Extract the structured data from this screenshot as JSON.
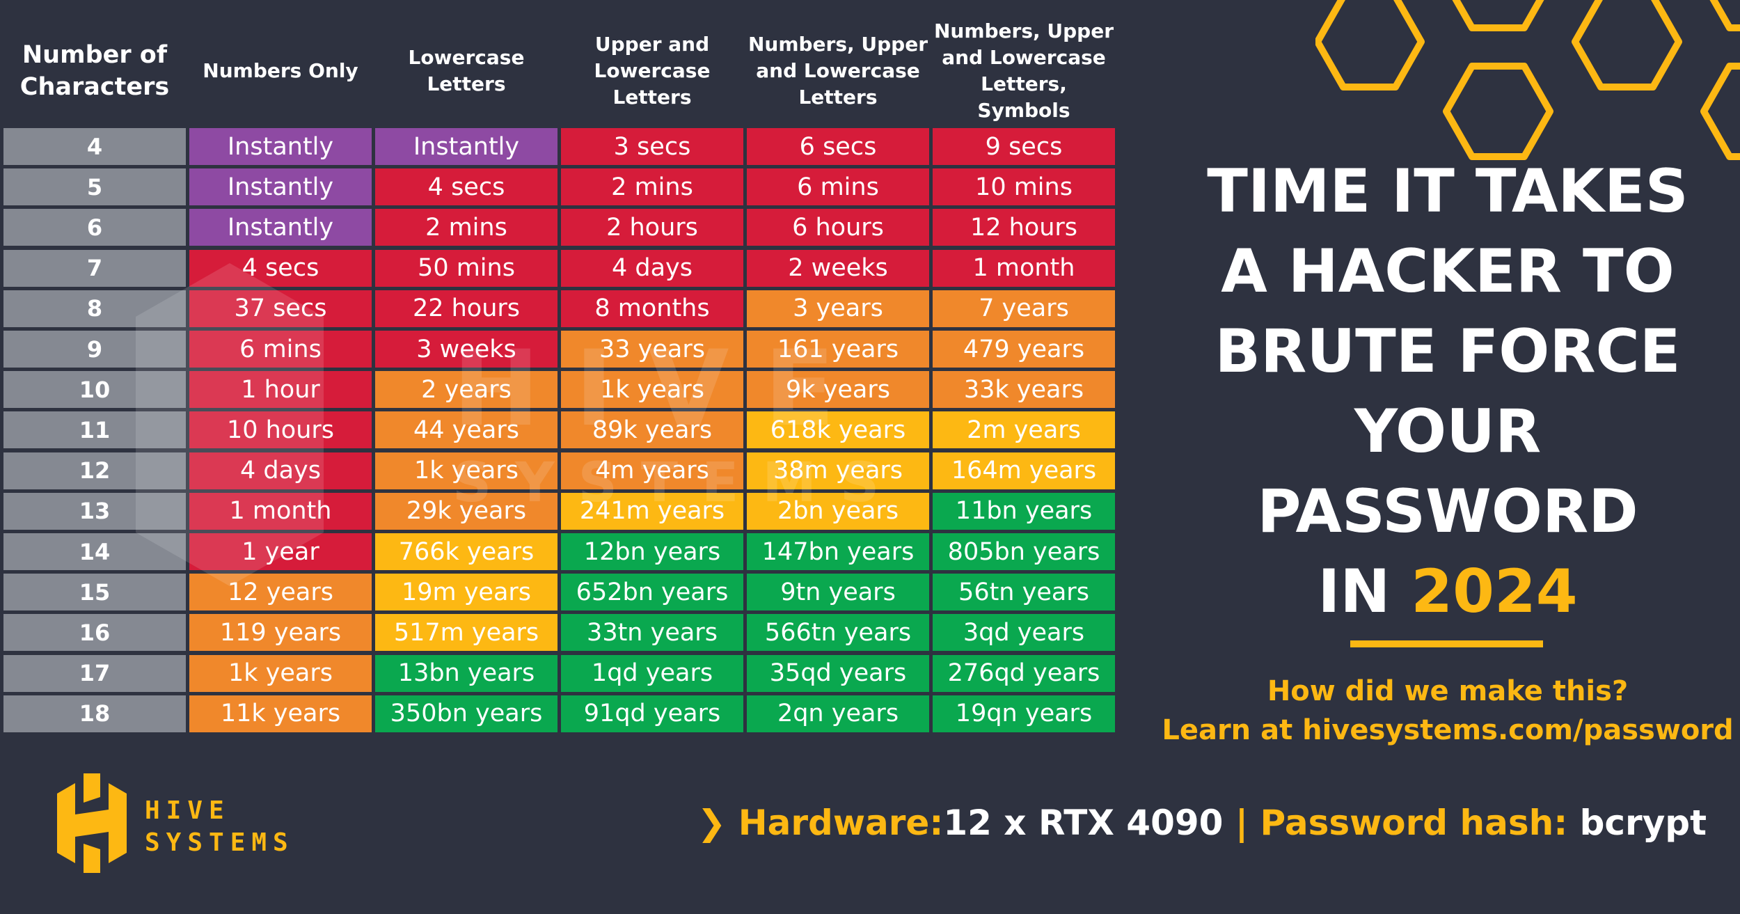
{
  "title": {
    "lines": [
      "TIME IT TAKES",
      "A HACKER TO",
      "BRUTE FORCE",
      "YOUR",
      "PASSWORD"
    ],
    "prefix": "IN",
    "year": "2024"
  },
  "learn": {
    "line1": "How did we make this?",
    "line2": "Learn at hivesystems.com/password"
  },
  "footer": {
    "chevron": "❯",
    "hardware_label": "Hardware:",
    "hardware_value": "12 x RTX 4090",
    "separator": "|",
    "hash_label": "Password hash:",
    "hash_value": "bcrypt"
  },
  "logo": {
    "line1": "HIVE",
    "line2": "SYSTEMS",
    "watermark1": "HIVE",
    "watermark2": "SYSTEMS"
  },
  "colors": {
    "background": "#2e3240",
    "purple": "#8e4aa3",
    "red": "#d61c3a",
    "orange": "#f0882b",
    "yellow": "#fdb813",
    "green": "#0aa84f",
    "row_label": "#858992",
    "accent": "#fdb813"
  },
  "chart_data": {
    "type": "table",
    "row_header": "Number of Characters",
    "columns": [
      "Numbers Only",
      "Lowercase Letters",
      "Upper and Lowercase Letters",
      "Numbers, Upper and Lowercase Letters",
      "Numbers, Upper and Lowercase Letters, Symbols"
    ],
    "header_lines": [
      [
        "Number of",
        "Characters"
      ],
      [
        "Numbers Only"
      ],
      [
        "Lowercase",
        "Letters"
      ],
      [
        "Upper and",
        "Lowercase",
        "Letters"
      ],
      [
        "Numbers, Upper",
        "and Lowercase",
        "Letters"
      ],
      [
        "Numbers, Upper",
        "and Lowercase",
        "Letters, Symbols"
      ]
    ],
    "rows": [
      {
        "chars": "4",
        "values": [
          "Instantly",
          "Instantly",
          "3 secs",
          "6 secs",
          "9 secs"
        ],
        "colors": [
          "purple",
          "purple",
          "red",
          "red",
          "red"
        ]
      },
      {
        "chars": "5",
        "values": [
          "Instantly",
          "4 secs",
          "2 mins",
          "6 mins",
          "10 mins"
        ],
        "colors": [
          "purple",
          "red",
          "red",
          "red",
          "red"
        ]
      },
      {
        "chars": "6",
        "values": [
          "Instantly",
          "2 mins",
          "2 hours",
          "6 hours",
          "12 hours"
        ],
        "colors": [
          "purple",
          "red",
          "red",
          "red",
          "red"
        ]
      },
      {
        "chars": "7",
        "values": [
          "4 secs",
          "50 mins",
          "4 days",
          "2 weeks",
          "1 month"
        ],
        "colors": [
          "red",
          "red",
          "red",
          "red",
          "red"
        ]
      },
      {
        "chars": "8",
        "values": [
          "37 secs",
          "22 hours",
          "8 months",
          "3 years",
          "7 years"
        ],
        "colors": [
          "red",
          "red",
          "red",
          "orange",
          "orange"
        ]
      },
      {
        "chars": "9",
        "values": [
          "6 mins",
          "3 weeks",
          "33 years",
          "161 years",
          "479 years"
        ],
        "colors": [
          "red",
          "red",
          "orange",
          "orange",
          "orange"
        ]
      },
      {
        "chars": "10",
        "values": [
          "1 hour",
          "2 years",
          "1k years",
          "9k years",
          "33k years"
        ],
        "colors": [
          "red",
          "orange",
          "orange",
          "orange",
          "orange"
        ]
      },
      {
        "chars": "11",
        "values": [
          "10 hours",
          "44 years",
          "89k years",
          "618k years",
          "2m years"
        ],
        "colors": [
          "red",
          "orange",
          "orange",
          "yellow",
          "yellow"
        ]
      },
      {
        "chars": "12",
        "values": [
          "4 days",
          "1k years",
          "4m years",
          "38m years",
          "164m years"
        ],
        "colors": [
          "red",
          "orange",
          "orange",
          "yellow",
          "yellow"
        ]
      },
      {
        "chars": "13",
        "values": [
          "1 month",
          "29k years",
          "241m years",
          "2bn years",
          "11bn years"
        ],
        "colors": [
          "red",
          "orange",
          "yellow",
          "yellow",
          "green"
        ]
      },
      {
        "chars": "14",
        "values": [
          "1 year",
          "766k years",
          "12bn years",
          "147bn years",
          "805bn years"
        ],
        "colors": [
          "red",
          "yellow",
          "green",
          "green",
          "green"
        ]
      },
      {
        "chars": "15",
        "values": [
          "12 years",
          "19m years",
          "652bn years",
          "9tn years",
          "56tn years"
        ],
        "colors": [
          "orange",
          "yellow",
          "green",
          "green",
          "green"
        ]
      },
      {
        "chars": "16",
        "values": [
          "119 years",
          "517m years",
          "33tn years",
          "566tn years",
          "3qd years"
        ],
        "colors": [
          "orange",
          "yellow",
          "green",
          "green",
          "green"
        ]
      },
      {
        "chars": "17",
        "values": [
          "1k years",
          "13bn years",
          "1qd years",
          "35qd years",
          "276qd years"
        ],
        "colors": [
          "orange",
          "green",
          "green",
          "green",
          "green"
        ]
      },
      {
        "chars": "18",
        "values": [
          "11k years",
          "350bn years",
          "91qd years",
          "2qn years",
          "19qn years"
        ],
        "colors": [
          "orange",
          "green",
          "green",
          "green",
          "green"
        ]
      }
    ]
  }
}
